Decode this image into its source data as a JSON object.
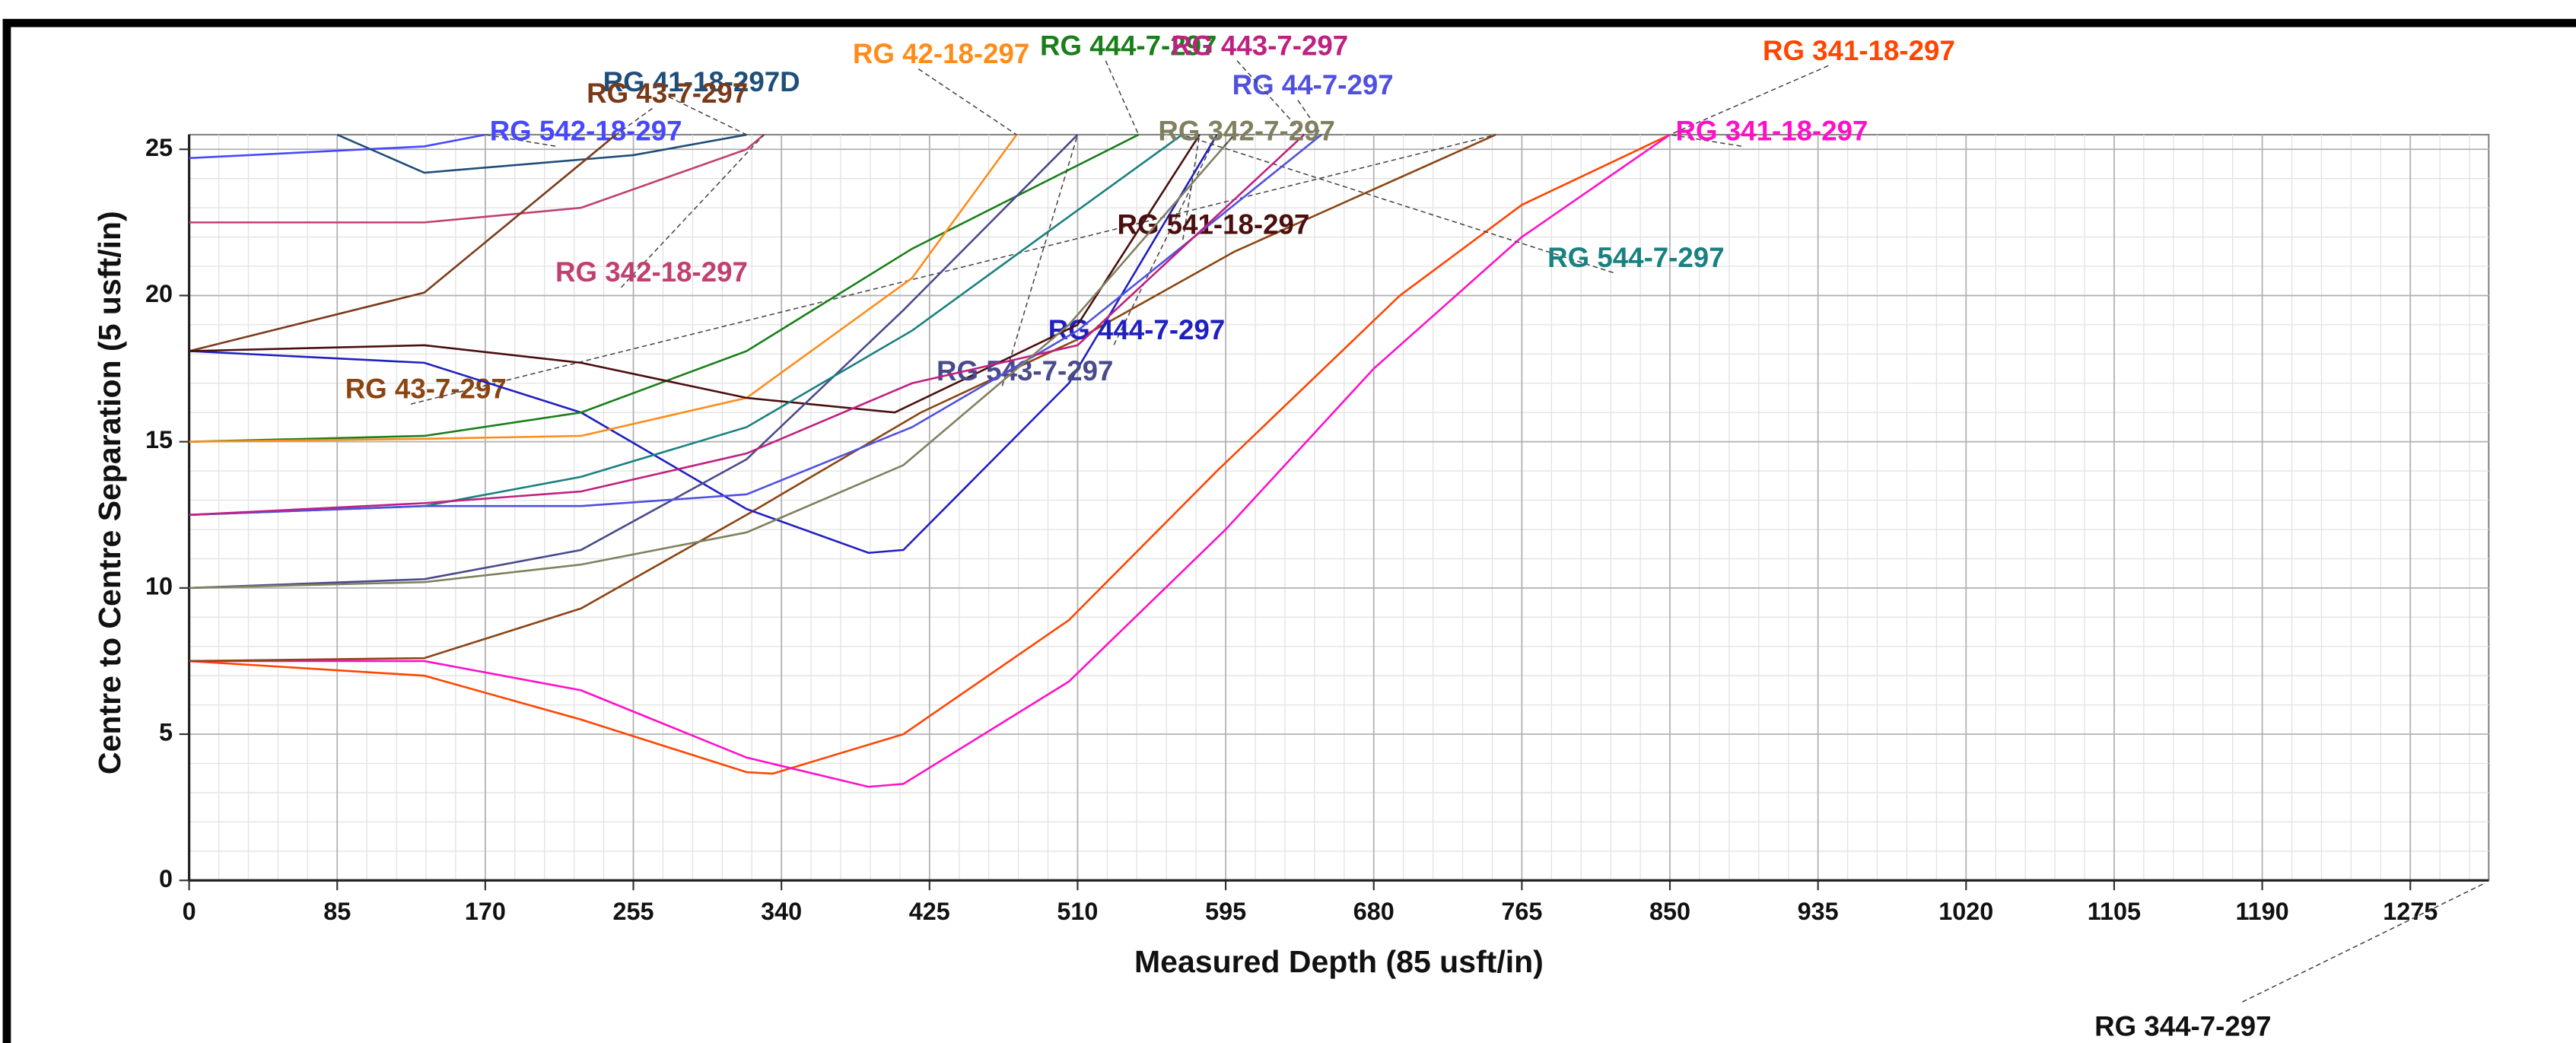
{
  "chart_data": {
    "type": "line",
    "x_label": "Measured Depth (85 usft/in)",
    "y_label": "Centre to Centre Separation (5 usft/in)",
    "xlim": [
      0,
      1320
    ],
    "ylim": [
      0,
      25.5
    ],
    "xticks": [
      0,
      85,
      170,
      255,
      340,
      425,
      510,
      595,
      680,
      765,
      850,
      935,
      1020,
      1105,
      1190,
      1275
    ],
    "yticks": [
      0,
      5,
      10,
      15,
      20,
      25
    ],
    "grid": true,
    "series": [
      {
        "name": "RG 341-18-297",
        "color": "#ff4500",
        "x": [
          0,
          135,
          225,
          320,
          335,
          410,
          505,
          590,
          695,
          765,
          850
        ],
        "values": [
          7.5,
          7,
          5.5,
          3.7,
          3.65,
          5,
          8.9,
          14,
          20,
          23.1,
          25.5
        ]
      },
      {
        "name": "RG 341-18-297",
        "color": "#ff10c8",
        "x": [
          0,
          135,
          225,
          320,
          390,
          410,
          505,
          595,
          680,
          765,
          850
        ],
        "values": [
          7.5,
          7.5,
          6.5,
          4.2,
          3.2,
          3.3,
          6.8,
          12,
          17.5,
          22,
          25.5
        ]
      },
      {
        "name": "RG 43-7-297",
        "color": "#8b4513",
        "x": [
          0,
          135,
          225,
          320,
          420,
          510,
          600,
          750
        ],
        "values": [
          7.5,
          7.6,
          9.3,
          12.5,
          16,
          18.5,
          21.5,
          25.5
        ]
      },
      {
        "name": "RG 542-18-297",
        "color": "#4848ff",
        "x": [
          0,
          135,
          170
        ],
        "values": [
          24.7,
          25.1,
          25.5
        ]
      },
      {
        "name": "RG 444-7-297",
        "color": "#2020c0",
        "x": [
          0,
          135,
          225,
          320,
          390,
          410,
          505,
          590
        ],
        "values": [
          18.1,
          17.7,
          16,
          12.7,
          11.2,
          11.3,
          17,
          25.5
        ]
      },
      {
        "name": "RG 41-18-297D",
        "color": "#1f4e79",
        "x": [
          85,
          135,
          255,
          320
        ],
        "values": [
          25.5,
          24.2,
          24.8,
          25.5
        ]
      },
      {
        "name": "RG 342-18-297",
        "color": "#c04070",
        "x": [
          0,
          135,
          225,
          320,
          330
        ],
        "values": [
          22.5,
          22.5,
          23,
          25,
          25.5
        ]
      },
      {
        "name": "RG 43-7-297",
        "color": "#7a3a1a",
        "x": [
          0,
          135,
          245
        ],
        "values": [
          18.1,
          20.1,
          25.5
        ]
      },
      {
        "name": "RG 444-7-297",
        "color": "#1a7f1a",
        "x": [
          0,
          135,
          225,
          320,
          415,
          545
        ],
        "values": [
          15,
          15.2,
          16,
          18.1,
          21.6,
          25.5
        ]
      },
      {
        "name": "RG 42-18-297",
        "color": "#ff8c1a",
        "x": [
          0,
          135,
          225,
          320,
          415,
          475
        ],
        "values": [
          15,
          15.1,
          15.2,
          16.5,
          20.6,
          25.5
        ]
      },
      {
        "name": "RG 541-18-297",
        "color": "#4b0f0f",
        "x": [
          0,
          135,
          225,
          320,
          405,
          510,
          580
        ],
        "values": [
          18.1,
          18.3,
          17.7,
          16.5,
          16,
          19,
          25.5
        ]
      },
      {
        "name": "RG 543-7-297",
        "color": "#4a4a8a",
        "x": [
          0,
          135,
          225,
          320,
          410,
          510
        ],
        "values": [
          10,
          10.3,
          11.3,
          14.4,
          19.5,
          25.5
        ]
      },
      {
        "name": "RG 544-7-297",
        "color": "#1a8080",
        "x": [
          0,
          135,
          225,
          320,
          415,
          505,
          570
        ],
        "values": [
          12.5,
          12.8,
          13.8,
          15.5,
          18.8,
          22.7,
          25.5
        ]
      },
      {
        "name": "RG 44-7-297",
        "color": "#5050e0",
        "x": [
          0,
          135,
          225,
          320,
          415,
          510,
          650
        ],
        "values": [
          12.5,
          12.8,
          12.8,
          13.2,
          15.5,
          18.8,
          25.5
        ]
      },
      {
        "name": "RG 443-7-297",
        "color": "#c02080",
        "x": [
          0,
          135,
          225,
          320,
          415,
          510,
          640
        ],
        "values": [
          12.5,
          12.9,
          13.3,
          14.6,
          17,
          18.3,
          25.5
        ]
      },
      {
        "name": "RG 342-7-297",
        "color": "#808060",
        "x": [
          0,
          135,
          225,
          320,
          410,
          505,
          600
        ],
        "values": [
          10,
          10.2,
          10.8,
          11.9,
          14.2,
          19,
          25.5
        ]
      }
    ],
    "annotations": [
      {
        "text": "RG 344-7-297"
      }
    ]
  }
}
